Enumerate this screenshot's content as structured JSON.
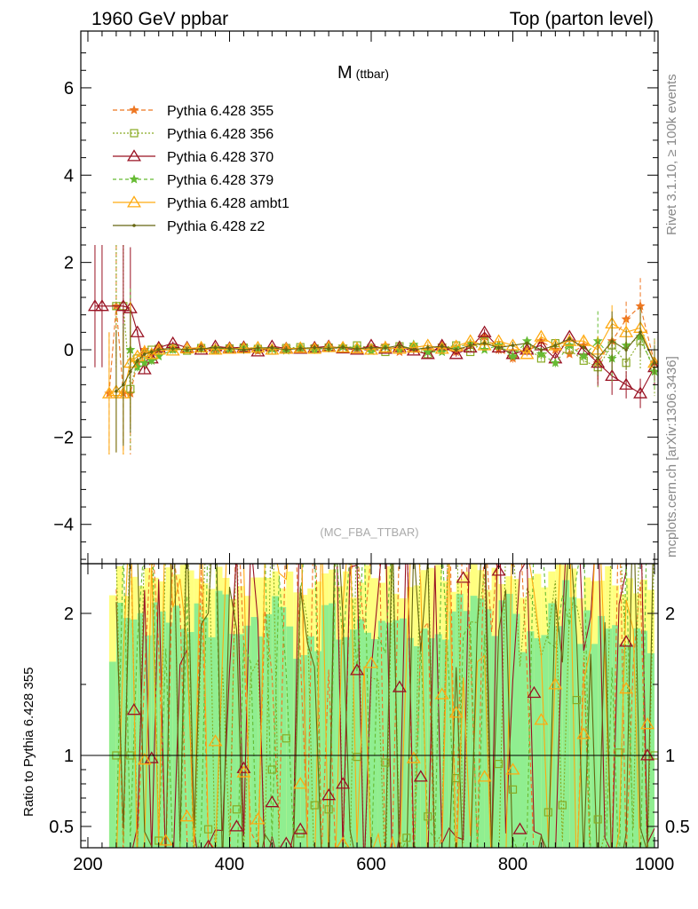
{
  "header": {
    "left": "1960 GeV ppbar",
    "right": "Top (parton level)"
  },
  "side": {
    "top": "Rivet 3.1.10, ≥ 100k events",
    "bottom": "mcplots.cern.ch [arXiv:1306.3436]"
  },
  "colors": {
    "band_green": "#90ee90",
    "band_yellow": "#ffff80",
    "s355": "#ee7722",
    "s356": "#88aa22",
    "s370": "#991122",
    "s379": "#66bb33",
    "ambt1": "#ffaa11",
    "z2": "#666611"
  },
  "chart_data": {
    "type": "line",
    "title_main": "M",
    "title_sub": "(ttbar)",
    "watermark": "(MC_FBA_TTBAR)",
    "ratio_ylabel": "Ratio to Pythia 6.428 355",
    "xlim": [
      190,
      1005
    ],
    "ylim": [
      -4.9,
      7.3
    ],
    "ratio_ylim": [
      0.35,
      2.35
    ],
    "xticks": [
      200,
      400,
      600,
      800,
      1000
    ],
    "yticks": [
      -4,
      -2,
      0,
      2,
      4,
      6
    ],
    "ratio_yticks": [
      0.5,
      1,
      2
    ],
    "grid": false,
    "legend_position": "top-left",
    "x": [
      210,
      220,
      230,
      240,
      250,
      260,
      270,
      280,
      290,
      300,
      320,
      340,
      360,
      380,
      400,
      420,
      440,
      460,
      480,
      500,
      520,
      540,
      560,
      580,
      600,
      620,
      640,
      660,
      680,
      700,
      720,
      740,
      760,
      780,
      800,
      820,
      840,
      860,
      880,
      900,
      920,
      940,
      960,
      980,
      1000
    ],
    "series": [
      {
        "name": "Pythia 6.428 355",
        "values": [
          0,
          0,
          -1.0,
          1.0,
          -1.0,
          -1.0,
          -0.3,
          0.0,
          -0.1,
          0.0,
          0.05,
          0.0,
          0.03,
          -0.02,
          0.04,
          0.02,
          -0.03,
          0.03,
          0.05,
          0.0,
          0.06,
          0.05,
          0.08,
          0.02,
          0.05,
          0.1,
          -0.05,
          0.05,
          0.0,
          0.1,
          -0.05,
          0.1,
          0.3,
          0.0,
          -0.2,
          0.0,
          0.2,
          0.0,
          -0.1,
          0.1,
          -0.3,
          0.2,
          0.7,
          1.0,
          -0.3
        ]
      },
      {
        "name": "Pythia 6.428 356",
        "values": [
          0,
          0,
          0,
          1.0,
          1.0,
          -0.9,
          -0.2,
          -0.1,
          0.0,
          0.02,
          0.03,
          -0.02,
          0.04,
          0.0,
          0.03,
          0.05,
          0.02,
          -0.02,
          0.04,
          0.06,
          0.03,
          0.05,
          0.02,
          0.1,
          0.04,
          -0.05,
          0.08,
          0.03,
          -0.1,
          0.05,
          0.1,
          -0.05,
          0.2,
          0.1,
          -0.1,
          0.05,
          -0.2,
          0.15,
          0.0,
          -0.25,
          -0.4,
          0.1,
          -0.3,
          0.2,
          -0.4
        ]
      },
      {
        "name": "Pythia 6.428 370",
        "values": [
          1.0,
          1.0,
          0,
          0,
          1.0,
          0.95,
          0.4,
          -0.45,
          -0.2,
          0.05,
          0.15,
          0.05,
          0.0,
          0.08,
          0.04,
          0.06,
          -0.04,
          0.08,
          0.03,
          0.02,
          0.05,
          0.08,
          0.03,
          0.0,
          0.1,
          0.02,
          0.06,
          -0.02,
          -0.1,
          0.1,
          -0.1,
          0.05,
          0.4,
          0.05,
          -0.1,
          0.0,
          0.1,
          -0.2,
          0.3,
          0.0,
          -0.3,
          -0.6,
          -0.8,
          -1.0,
          -0.4
        ]
      },
      {
        "name": "Pythia 6.428 379",
        "values": [
          0,
          0,
          0,
          0,
          0,
          0,
          -0.4,
          -0.3,
          -0.25,
          -0.15,
          0.0,
          0.0,
          0.02,
          0.04,
          0.0,
          0.06,
          0.03,
          0.02,
          -0.02,
          0.05,
          0.0,
          0.04,
          0.07,
          0.05,
          -0.03,
          0.08,
          0.0,
          0.12,
          -0.05,
          -0.05,
          0.05,
          0.15,
          0.0,
          0.1,
          -0.15,
          0.2,
          -0.1,
          -0.3,
          0.1,
          -0.15,
          0.2,
          -0.2,
          0.1,
          0.3,
          -0.5
        ]
      },
      {
        "name": "Pythia 6.428 ambt1",
        "values": [
          0,
          0,
          -1.0,
          -0.95,
          -1.0,
          -0.3,
          -0.15,
          -0.05,
          -0.1,
          0.0,
          -0.02,
          0.03,
          0.05,
          0.0,
          0.02,
          0.03,
          0.05,
          0.0,
          0.02,
          0.04,
          0.02,
          0.06,
          0.05,
          0.03,
          0.0,
          0.05,
          0.02,
          0.05,
          0.1,
          0.02,
          0.08,
          0.2,
          0.1,
          0.2,
          0.1,
          -0.1,
          0.3,
          0.1,
          0.2,
          0.2,
          0.0,
          0.6,
          0.4,
          0.5,
          -0.3
        ]
      },
      {
        "name": "Pythia 6.428 z2",
        "values": [
          0,
          0,
          0,
          -0.95,
          -0.8,
          -0.5,
          -0.25,
          -0.1,
          -0.05,
          0.0,
          0.03,
          0.0,
          0.02,
          0.05,
          0.03,
          0.0,
          0.04,
          0.05,
          0.0,
          0.03,
          0.05,
          0.03,
          0.06,
          0.02,
          0.05,
          0.04,
          0.1,
          0.0,
          0.05,
          0.08,
          0.0,
          0.1,
          0.15,
          0.05,
          0.1,
          0.15,
          0.0,
          0.1,
          0.25,
          0.05,
          -0.2,
          0.2,
          0.0,
          0.4,
          -0.3
        ]
      }
    ],
    "ratio_markers": [
      {
        "series": "Pythia 6.428 356",
        "x": [
          240,
          260,
          300,
          370,
          410,
          460,
          480,
          500,
          520,
          540,
          580,
          620,
          650,
          680,
          720,
          780,
          800,
          850,
          870,
          890,
          920,
          950,
          1000
        ],
        "y": [
          1.0,
          1.0,
          0.4,
          0.48,
          0.62,
          0.9,
          1.12,
          0.45,
          0.65,
          0.62,
          0.99,
          0.95,
          0.42,
          0.57,
          0.84,
          0.94,
          0.76,
          0.6,
          0.65,
          1.39,
          0.55,
          1.02,
          1.0
        ]
      },
      {
        "series": "Pythia 6.428 370",
        "x": [
          265,
          290,
          370,
          410,
          420,
          460,
          480,
          500,
          540,
          560,
          580,
          640,
          670,
          730,
          780,
          810,
          830,
          960,
          990
        ],
        "y": [
          1.32,
          0.98,
          0.36,
          0.5,
          0.91,
          0.67,
          0.38,
          0.48,
          0.72,
          0.8,
          1.6,
          1.48,
          0.85,
          2.25,
          2.3,
          0.48,
          1.44,
          1.8,
          1.0
        ]
      },
      {
        "series": "Pythia 6.428 ambt1",
        "x": [
          280,
          310,
          340,
          380,
          420,
          440,
          500,
          560,
          600,
          660,
          700,
          720,
          760,
          800,
          840,
          860,
          900,
          960,
          990
        ],
        "y": [
          0.97,
          0.4,
          0.57,
          1.1,
          0.88,
          0.55,
          0.8,
          0.38,
          1.65,
          0.98,
          1.43,
          1.3,
          0.85,
          0.9,
          1.25,
          1.5,
          1.15,
          1.47,
          1.22
        ]
      }
    ]
  }
}
